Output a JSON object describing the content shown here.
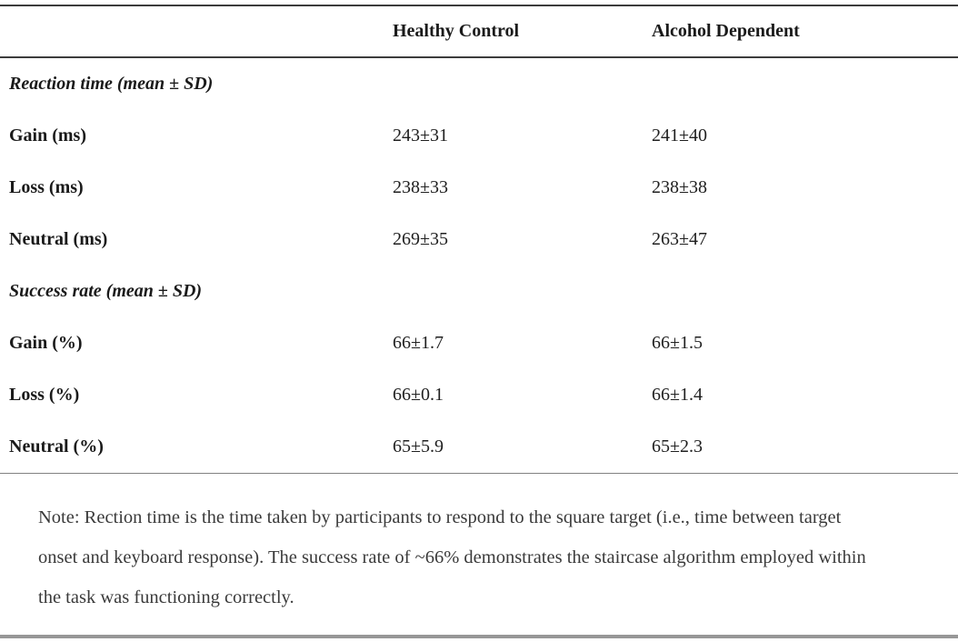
{
  "table": {
    "columns": [
      "",
      "Healthy Control",
      "Alcohol Dependent"
    ],
    "sections": [
      {
        "title": "Reaction time (mean ± SD)",
        "rows": [
          {
            "label": "Gain (ms)",
            "values": [
              "243±31",
              "241±40"
            ]
          },
          {
            "label": "Loss (ms)",
            "values": [
              "238±33",
              "238±38"
            ]
          },
          {
            "label": "Neutral (ms)",
            "values": [
              "269±35",
              "263±47"
            ]
          }
        ]
      },
      {
        "title": "Success rate (mean ± SD)",
        "rows": [
          {
            "label": "Gain (%)",
            "values": [
              "66±1.7",
              "66±1.5"
            ]
          },
          {
            "label": "Loss (%)",
            "values": [
              "66±0.1",
              "66±1.4"
            ]
          },
          {
            "label": "Neutral (%)",
            "values": [
              "65±5.9",
              "65±2.3"
            ]
          }
        ]
      }
    ]
  },
  "note": "Note: Rection time is the time taken by participants to respond to the square target (i.e., time between target onset and keyboard response). The success rate of ~66% demonstrates the staircase algorithm employed within the task was functioning correctly.",
  "colors": {
    "text": "#1f1f1f",
    "note_text": "#3a3a3a",
    "rule_dark": "#3c3c3c",
    "rule_light": "#828282",
    "rule_bottom": "#979797"
  }
}
